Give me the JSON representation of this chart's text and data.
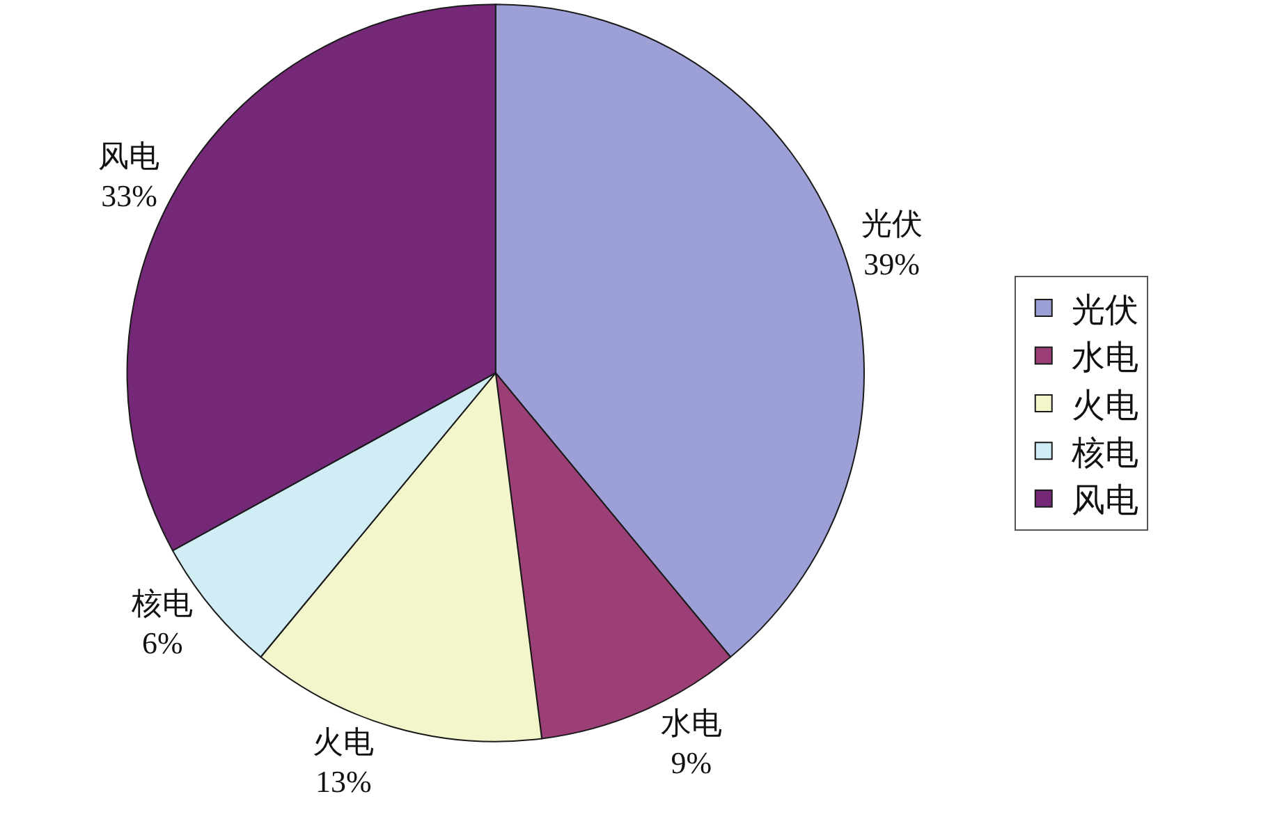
{
  "chart_data": {
    "type": "pie",
    "categories": [
      "光伏",
      "水电",
      "火电",
      "核电",
      "风电"
    ],
    "values": [
      39,
      9,
      13,
      6,
      33
    ],
    "value_labels": [
      "39%",
      "9%",
      "13%",
      "6%",
      "33%"
    ],
    "colors": [
      "#9da0d6",
      "#9c3f77",
      "#f3f5cb",
      "#d0ecf4",
      "#742877"
    ],
    "legend": "right"
  }
}
